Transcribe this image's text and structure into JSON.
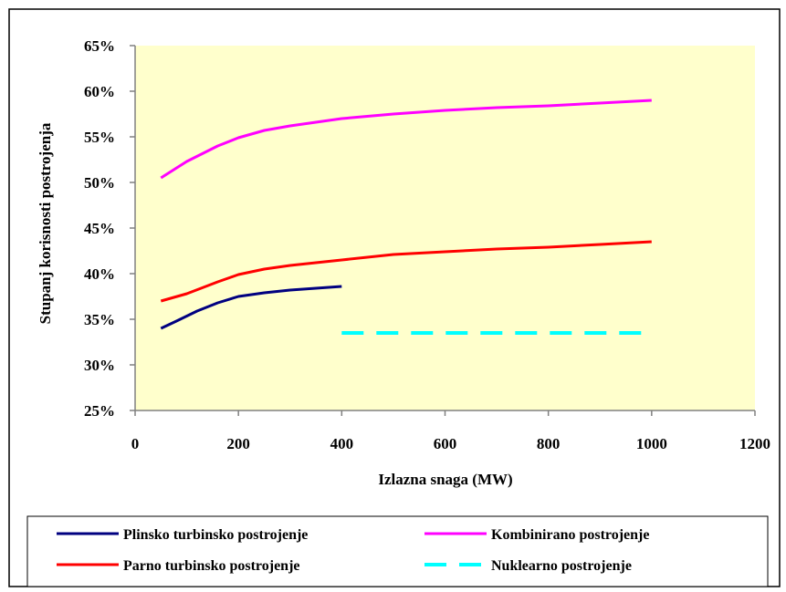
{
  "chart_data": {
    "type": "line",
    "title": "",
    "xlabel": "Izlazna snaga (MW)",
    "ylabel": "Stupanj korisnosti postrojenja",
    "xlim": [
      0,
      1200
    ],
    "ylim": [
      25,
      65
    ],
    "x_ticks": [
      "0",
      "200",
      "400",
      "600",
      "800",
      "1000",
      "1200"
    ],
    "y_ticks": [
      "25%",
      "30%",
      "35%",
      "40%",
      "45%",
      "50%",
      "55%",
      "60%",
      "65%"
    ],
    "plot_background": "#ffffcc",
    "grid": false,
    "legend_position": "bottom",
    "series": [
      {
        "name": "Plinsko turbinsko postrojenje",
        "color": "#000080",
        "dash": "solid",
        "x": [
          50,
          80,
          120,
          160,
          200,
          250,
          300,
          350,
          400
        ],
        "y": [
          34.0,
          34.8,
          35.9,
          36.8,
          37.5,
          37.9,
          38.2,
          38.4,
          38.6
        ]
      },
      {
        "name": "Kombinirano postrojenje",
        "color": "#ff00ff",
        "dash": "solid",
        "x": [
          50,
          100,
          160,
          200,
          250,
          300,
          400,
          500,
          600,
          700,
          800,
          900,
          1000
        ],
        "y": [
          50.5,
          52.3,
          54.0,
          54.9,
          55.7,
          56.2,
          57.0,
          57.5,
          57.9,
          58.2,
          58.4,
          58.7,
          59.0
        ]
      },
      {
        "name": "Parno turbinsko postrojenje",
        "color": "#ff0000",
        "dash": "solid",
        "x": [
          50,
          100,
          160,
          200,
          250,
          300,
          400,
          500,
          600,
          700,
          800,
          900,
          1000
        ],
        "y": [
          37.0,
          37.8,
          39.1,
          39.9,
          40.5,
          40.9,
          41.5,
          42.1,
          42.4,
          42.7,
          42.9,
          43.2,
          43.5
        ]
      },
      {
        "name": "Nuklearno postrojenje",
        "color": "#00ffff",
        "dash": "dashed",
        "x": [
          400,
          1000
        ],
        "y": [
          33.5,
          33.5
        ]
      }
    ]
  }
}
